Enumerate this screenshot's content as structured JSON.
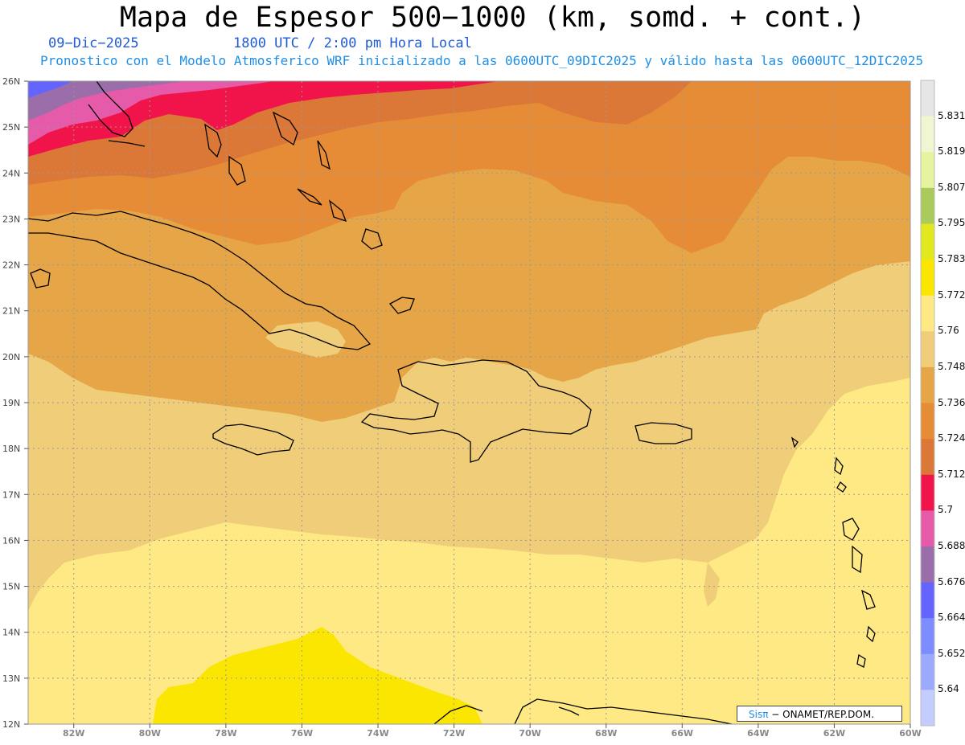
{
  "header": {
    "title": "Mapa de Espesor 500−1000 (km, somd. + cont.)",
    "date": "09−Dic−2025",
    "time": "1800 UTC / 2:00 pm Hora Local",
    "subtitle": "Pronostico con el Modelo Atmosferico WRF inicializado a las 0600UTC_09DIC2025 y válido hasta las  0600UTC_12DIC2025"
  },
  "map": {
    "lat_labels": [
      "26N",
      "25N",
      "24N",
      "23N",
      "22N",
      "21N",
      "20N",
      "19N",
      "18N",
      "17N",
      "16N",
      "15N",
      "14N",
      "13N",
      "12N"
    ],
    "lon_labels": [
      "82W",
      "80W",
      "78W",
      "76W",
      "74W",
      "72W",
      "70W",
      "68W",
      "66W",
      "64W",
      "62W",
      "60W"
    ],
    "lat_range": [
      12,
      26
    ],
    "lon_range": [
      -83.2,
      -60
    ],
    "grid": true
  },
  "colorbar": {
    "levels": [
      "5.831",
      "5.819",
      "5.807",
      "5.795",
      "5.783",
      "5.772",
      "5.76",
      "5.748",
      "5.736",
      "5.724",
      "5.712",
      "5.7",
      "5.688",
      "5.676",
      "5.664",
      "5.652",
      "5.64"
    ],
    "colors": [
      "#e6e6e6",
      "#f0f5d2",
      "#e6f4a0",
      "#aaca5a",
      "#e1e81e",
      "#fae600",
      "#ffe985",
      "#f0cd78",
      "#e6a546",
      "#e68c37",
      "#dc7837",
      "#f0144b",
      "#e65aaa",
      "#9b6eaa",
      "#6464ff",
      "#7d8cff",
      "#9baaff",
      "#c3cdff"
    ]
  },
  "credit": {
    "brand": "Sis",
    "pi": "π",
    "text": "− ONAMET/REP.DOM."
  }
}
